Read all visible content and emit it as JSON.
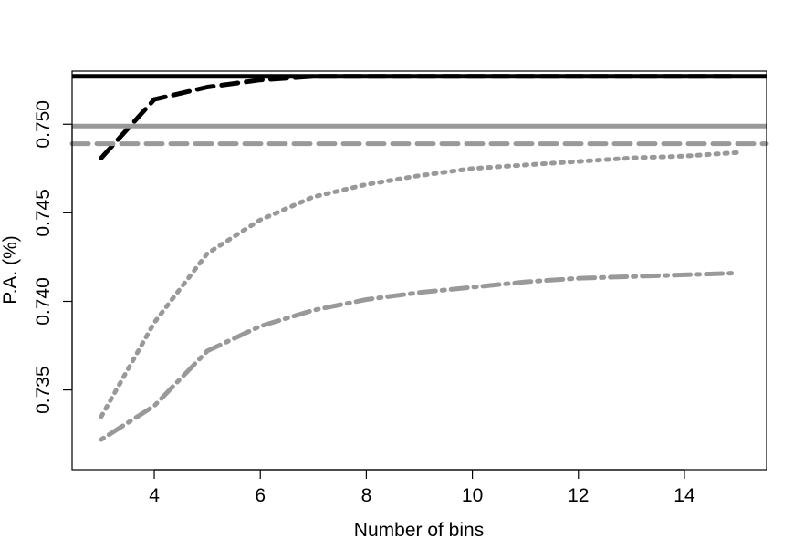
{
  "chart_data": {
    "type": "line",
    "title": "",
    "xlabel": "Number of bins",
    "ylabel": "P.A. (%)",
    "xlim": [
      2.45,
      15.55
    ],
    "ylim": [
      0.7305,
      0.753
    ],
    "x_ticks": [
      4,
      6,
      8,
      10,
      12,
      14
    ],
    "x_tick_labels": [
      "4",
      "6",
      "8",
      "10",
      "12",
      "14"
    ],
    "y_ticks": [
      0.735,
      0.74,
      0.745,
      0.75
    ],
    "y_tick_labels": [
      "0.735",
      "0.740",
      "0.745",
      "0.750"
    ],
    "grid": false,
    "legend": "none",
    "series": [
      {
        "style": "solid",
        "color": "#000000",
        "x": [
          2.45,
          15.55
        ],
        "values": [
          0.7527,
          0.7527
        ]
      },
      {
        "style": "dashed",
        "color": "#000000",
        "x": [
          3,
          4,
          5,
          6,
          7,
          8,
          9,
          10,
          11,
          12,
          13,
          14,
          15
        ],
        "values": [
          0.7481,
          0.7514,
          0.7521,
          0.7525,
          0.7527,
          0.7527,
          0.7527,
          0.7527,
          0.7527,
          0.7527,
          0.7527,
          0.7527,
          0.7527
        ]
      },
      {
        "style": "solid",
        "color": "#999999",
        "x": [
          2.45,
          15.55
        ],
        "values": [
          0.7499,
          0.7499
        ]
      },
      {
        "style": "dashed",
        "color": "#999999",
        "x": [
          2.45,
          15.55
        ],
        "values": [
          0.7489,
          0.7489
        ]
      },
      {
        "style": "dotted",
        "color": "#999999",
        "x": [
          3,
          4,
          5,
          6,
          7,
          8,
          9,
          10,
          11,
          12,
          13,
          14,
          15
        ],
        "values": [
          0.7335,
          0.7388,
          0.7427,
          0.7446,
          0.7459,
          0.7466,
          0.7471,
          0.7475,
          0.7477,
          0.7479,
          0.7481,
          0.7482,
          0.7484
        ]
      },
      {
        "style": "dotdash",
        "color": "#999999",
        "x": [
          3,
          4,
          5,
          6,
          7,
          8,
          9,
          10,
          11,
          12,
          13,
          14,
          15
        ],
        "values": [
          0.7322,
          0.7341,
          0.7372,
          0.7386,
          0.7395,
          0.7401,
          0.7405,
          0.7408,
          0.7411,
          0.7413,
          0.7414,
          0.7415,
          0.7416
        ]
      }
    ]
  }
}
